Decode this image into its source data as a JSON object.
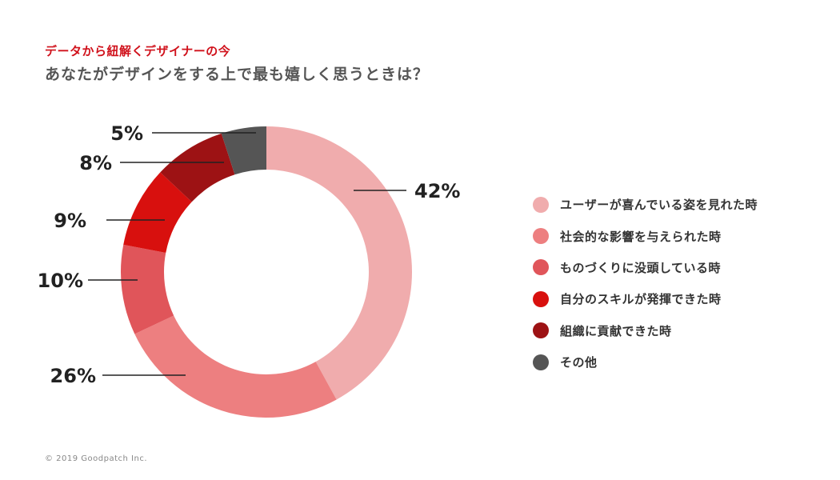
{
  "header": {
    "subtitle": "データから紐解くデザイナーの今",
    "title": "あなたがデザインをする上で最も嬉しく思うときは？"
  },
  "chart_data": {
    "type": "pie",
    "donut": true,
    "categories": [
      "ユーザーが喜んでいる姿を見れた時",
      "社会的な影響を与えられた時",
      "ものづくりに没頭している時",
      "自分のスキルが発揮できた時",
      "組織に貢献できた時",
      "その他"
    ],
    "values": [
      42,
      26,
      10,
      9,
      8,
      5
    ],
    "data_labels": [
      "42%",
      "26%",
      "10%",
      "9%",
      "8%",
      "5%"
    ],
    "colors": [
      "#f0acad",
      "#ed7f80",
      "#e0555a",
      "#d8100e",
      "#9d1214",
      "#555555"
    ],
    "legend_placement": "right"
  },
  "footer": {
    "copyright": "© 2019 Goodpatch Inc."
  }
}
